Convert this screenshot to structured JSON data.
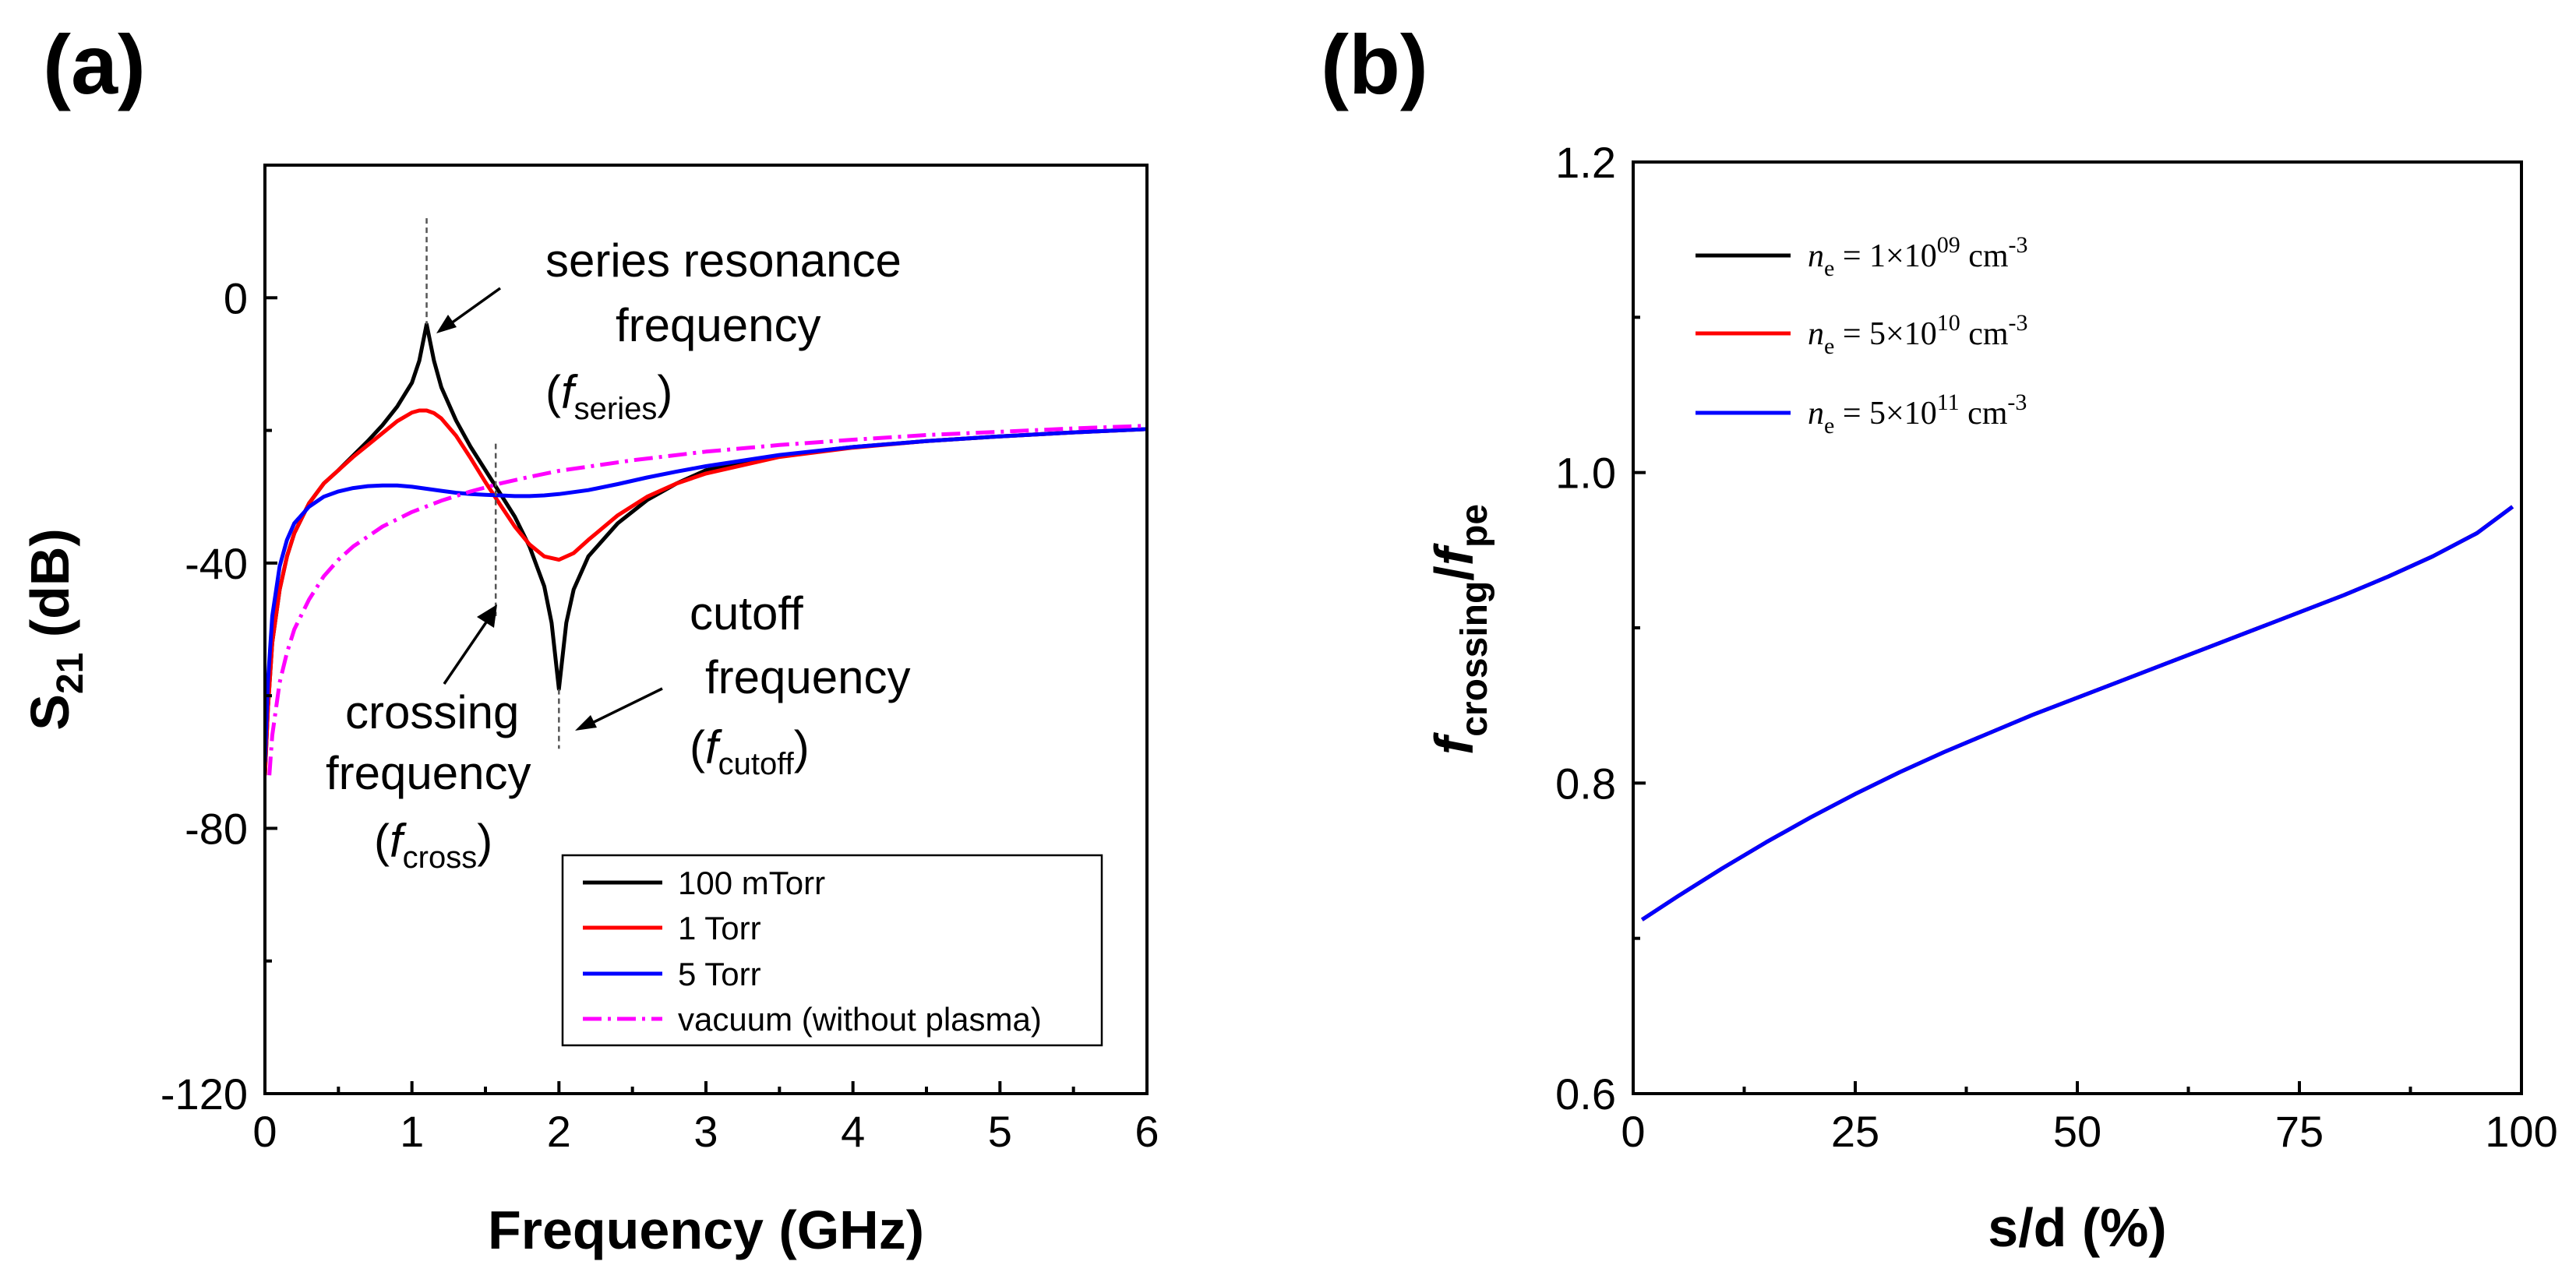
{
  "chart_data": [
    {
      "panel": "(a)",
      "type": "line",
      "xlabel": "Frequency (GHz)",
      "ylabel": {
        "base": "S",
        "sub": "21",
        "rest": " (dB)"
      },
      "xlim": [
        0,
        6
      ],
      "ylim": [
        -120,
        20
      ],
      "xticks": [
        0,
        1,
        2,
        3,
        4,
        5,
        6
      ],
      "xtick_labels": [
        "0",
        "1",
        "2",
        "3",
        "4",
        "5",
        "6"
      ],
      "yticks": [
        -120,
        -80,
        -40,
        0
      ],
      "ytick_labels": [
        "-120",
        "-80",
        "-40",
        "0"
      ],
      "series": [
        {
          "name": "100 mTorr",
          "color": "#000000",
          "dash": "solid",
          "x": [
            0.0,
            0.02,
            0.05,
            0.1,
            0.15,
            0.2,
            0.3,
            0.4,
            0.5,
            0.6,
            0.7,
            0.8,
            0.9,
            1.0,
            1.05,
            1.1,
            1.15,
            1.2,
            1.3,
            1.4,
            1.5,
            1.6,
            1.7,
            1.8,
            1.9,
            1.95,
            2.0,
            2.05,
            2.1,
            2.2,
            2.4,
            2.6,
            2.8,
            3.0,
            3.5,
            4.0,
            4.5,
            5.0,
            5.5,
            6.0
          ],
          "y": [
            -72,
            -62,
            -52,
            -44,
            -39,
            -35.5,
            -31,
            -28,
            -26,
            -23.8,
            -21.6,
            -19.2,
            -16.4,
            -12.8,
            -9.5,
            -4,
            -9.5,
            -13.5,
            -18.5,
            -22.5,
            -26,
            -29.5,
            -33,
            -37.5,
            -43.5,
            -49,
            -59,
            -49,
            -44,
            -39,
            -34,
            -30.5,
            -28,
            -26,
            -23.8,
            -22.5,
            -21.6,
            -20.9,
            -20.3,
            -19.8
          ]
        },
        {
          "name": "1 Torr",
          "color": "#ff0000",
          "dash": "solid",
          "x": [
            0.0,
            0.02,
            0.05,
            0.1,
            0.15,
            0.2,
            0.3,
            0.4,
            0.5,
            0.6,
            0.7,
            0.8,
            0.9,
            1.0,
            1.05,
            1.1,
            1.15,
            1.2,
            1.3,
            1.4,
            1.5,
            1.6,
            1.7,
            1.8,
            1.9,
            2.0,
            2.1,
            2.2,
            2.4,
            2.6,
            2.8,
            3.0,
            3.5,
            4.0,
            4.5,
            5.0,
            5.5,
            6.0
          ],
          "y": [
            -72,
            -62,
            -52,
            -44,
            -39,
            -35.5,
            -31,
            -28,
            -26,
            -24,
            -22.2,
            -20.4,
            -18.6,
            -17.3,
            -17,
            -17,
            -17.4,
            -18.2,
            -20.8,
            -24.2,
            -27.8,
            -31.2,
            -34.5,
            -37.2,
            -39,
            -39.5,
            -38.5,
            -36.5,
            -32.8,
            -30,
            -28,
            -26.5,
            -24,
            -22.6,
            -21.6,
            -20.9,
            -20.3,
            -19.8
          ]
        },
        {
          "name": "5 Torr",
          "color": "#0000ff",
          "dash": "solid",
          "x": [
            0.0,
            0.02,
            0.05,
            0.1,
            0.15,
            0.2,
            0.3,
            0.4,
            0.5,
            0.6,
            0.7,
            0.8,
            0.9,
            1.0,
            1.1,
            1.2,
            1.3,
            1.4,
            1.5,
            1.6,
            1.7,
            1.8,
            1.9,
            2.0,
            2.2,
            2.4,
            2.6,
            2.8,
            3.0,
            3.5,
            4.0,
            4.5,
            5.0,
            5.5,
            6.0
          ],
          "y": [
            -70,
            -58,
            -48,
            -40.5,
            -36.5,
            -34,
            -31.5,
            -30,
            -29.2,
            -28.7,
            -28.4,
            -28.3,
            -28.3,
            -28.5,
            -28.8,
            -29.1,
            -29.4,
            -29.6,
            -29.7,
            -29.8,
            -29.9,
            -29.9,
            -29.8,
            -29.6,
            -29,
            -28.1,
            -27.1,
            -26.2,
            -25.4,
            -23.7,
            -22.5,
            -21.6,
            -20.9,
            -20.3,
            -19.8
          ]
        },
        {
          "name": "vacuum (without plasma)",
          "color": "#ff00ff",
          "dash": "dashdot",
          "x": [
            0.03,
            0.05,
            0.1,
            0.15,
            0.2,
            0.3,
            0.4,
            0.5,
            0.6,
            0.8,
            1.0,
            1.2,
            1.4,
            1.6,
            1.8,
            2.0,
            2.5,
            3.0,
            3.5,
            4.0,
            4.5,
            5.0,
            5.5,
            6.0
          ],
          "y": [
            -72,
            -66,
            -58,
            -53.5,
            -50,
            -45.5,
            -42,
            -39.5,
            -37.5,
            -34.5,
            -32.3,
            -30.6,
            -29.2,
            -28,
            -27,
            -26.1,
            -24.5,
            -23.2,
            -22.2,
            -21.4,
            -20.7,
            -20.2,
            -19.7,
            -19.3
          ]
        }
      ],
      "legend": {
        "placement": "bottom-right",
        "entries": [
          "100 mTorr",
          "1 Torr",
          "5 Torr",
          "vacuum (without plasma)"
        ]
      },
      "annotations": {
        "series": {
          "line1": "series resonance",
          "line2": "frequency",
          "f": "f",
          "sub": "series",
          "x": 1.1,
          "y": -4
        },
        "crossing": {
          "line1": "crossing",
          "line2": "frequency",
          "f": "f",
          "sub": "cross",
          "x": 1.57,
          "y": -29
        },
        "cutoff": {
          "line1": "cutoff",
          "line2": "frequency",
          "f": "f",
          "sub": "cutoff",
          "x": 2.0,
          "y": -59
        },
        "open_paren": "(",
        "close_paren": ")"
      }
    },
    {
      "panel": "(b)",
      "type": "line",
      "xlabel": "s/d (%)",
      "ylabel": {
        "f1": "f",
        "sub1": "crossing",
        "slash": "/",
        "f2": "f",
        "sub2": "pe"
      },
      "xlim": [
        0,
        100
      ],
      "ylim": [
        0.6,
        1.2
      ],
      "xticks": [
        0,
        25,
        50,
        75,
        100
      ],
      "xtick_labels": [
        "0",
        "25",
        "50",
        "75",
        "100"
      ],
      "yticks": [
        0.6,
        0.8,
        1.0,
        1.2
      ],
      "ytick_labels": [
        "0.6",
        "0.8",
        "1.0",
        "1.2"
      ],
      "series": [
        {
          "name": "n_e = 1×10^09 cm^-3",
          "color": "#000000",
          "x": [
            1,
            5,
            10,
            15,
            20,
            25,
            30,
            35,
            40,
            45,
            50,
            55,
            60,
            65,
            70,
            75,
            80,
            85,
            90,
            95,
            99
          ],
          "y": [
            0.712,
            0.727,
            0.745,
            0.762,
            0.778,
            0.793,
            0.807,
            0.82,
            0.832,
            0.844,
            0.855,
            0.866,
            0.877,
            0.888,
            0.899,
            0.91,
            0.921,
            0.933,
            0.946,
            0.961,
            0.978
          ]
        },
        {
          "name": "n_e = 5×10^10 cm^-3",
          "color": "#ff0000",
          "x": [
            1,
            5,
            10,
            15,
            20,
            25,
            30,
            35,
            40,
            45,
            50,
            55,
            60,
            65,
            70,
            75,
            80,
            85,
            90,
            95,
            99
          ],
          "y": [
            0.712,
            0.727,
            0.745,
            0.762,
            0.778,
            0.793,
            0.807,
            0.82,
            0.832,
            0.844,
            0.855,
            0.866,
            0.877,
            0.888,
            0.899,
            0.91,
            0.921,
            0.933,
            0.946,
            0.961,
            0.978
          ]
        },
        {
          "name": "n_e = 5×10^11 cm^-3",
          "color": "#0000ff",
          "x": [
            1,
            5,
            10,
            15,
            20,
            25,
            30,
            35,
            40,
            45,
            50,
            55,
            60,
            65,
            70,
            75,
            80,
            85,
            90,
            95,
            99
          ],
          "y": [
            0.712,
            0.727,
            0.745,
            0.762,
            0.778,
            0.793,
            0.807,
            0.82,
            0.832,
            0.844,
            0.855,
            0.866,
            0.877,
            0.888,
            0.899,
            0.91,
            0.921,
            0.933,
            0.946,
            0.961,
            0.978
          ]
        }
      ],
      "legend": {
        "placement": "top-left",
        "entries": [
          {
            "n": "n",
            "sub": "e",
            "eq": " = ",
            "mant": "1×10",
            "exp": "09",
            "unit": " cm",
            "unit_exp": "-3"
          },
          {
            "n": "n",
            "sub": "e",
            "eq": " = ",
            "mant": "5×10",
            "exp": "10",
            "unit": " cm",
            "unit_exp": "-3"
          },
          {
            "n": "n",
            "sub": "e",
            "eq": " = ",
            "mant": "5×10",
            "exp": "11",
            "unit": " cm",
            "unit_exp": "-3"
          }
        ]
      }
    }
  ]
}
